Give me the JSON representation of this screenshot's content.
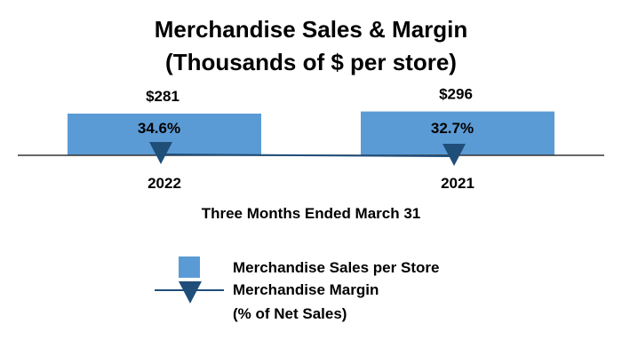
{
  "chart_data": {
    "type": "bar",
    "title": [
      "Merchandise Sales & Margin",
      "(Thousands of $ per store)"
    ],
    "xlabel": "Three Months Ended March 31",
    "categories": [
      "2022",
      "2021"
    ],
    "series": [
      {
        "name": "Merchandise Sales per Store",
        "kind": "bar",
        "values": [
          281,
          296
        ],
        "value_labels": [
          "$281",
          "$296"
        ],
        "color": "#5b9bd5"
      },
      {
        "name": "Merchandise Margin",
        "name_line2": "(% of Net Sales)",
        "kind": "line-marker",
        "values": [
          34.6,
          32.7
        ],
        "value_labels": [
          "34.6%",
          "32.7%"
        ],
        "color": "#1f4e79",
        "marker": "triangle-down"
      }
    ],
    "legend_position": "bottom",
    "grid": false
  }
}
